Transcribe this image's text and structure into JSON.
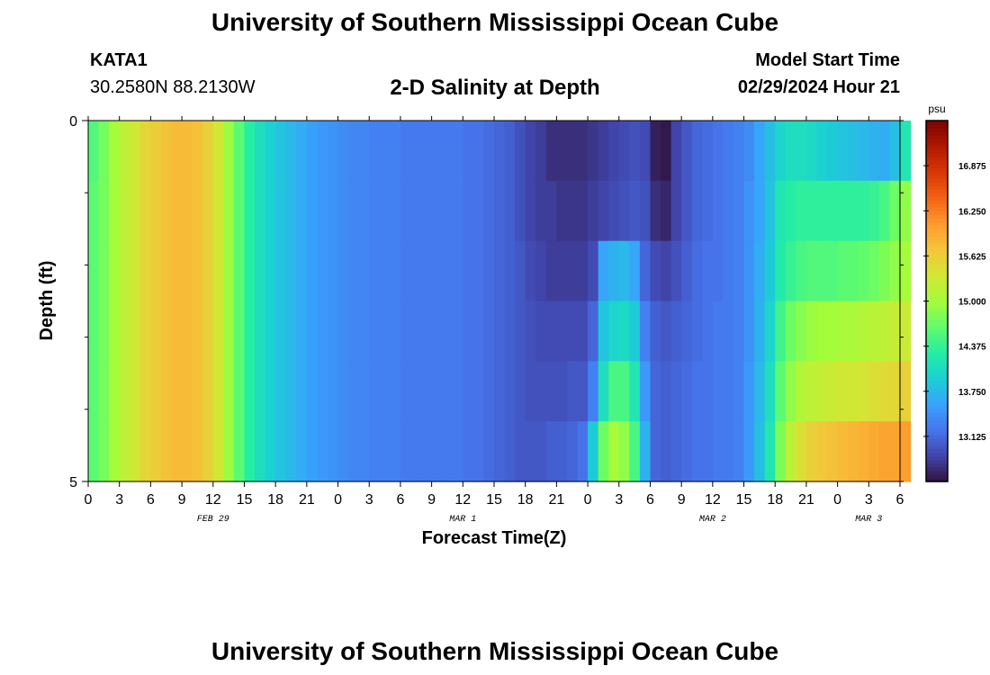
{
  "header": {
    "title": "University of Southern Mississippi Ocean Cube",
    "station": "KATA1",
    "coordinates": "30.2580N  88.2130W",
    "subtitle": "2-D Salinity at Depth",
    "model_start_label": "Model Start Time",
    "model_start_value": "02/29/2024 Hour 21"
  },
  "footer": {
    "title": "University of Southern Mississippi Ocean Cube"
  },
  "chart_data": {
    "type": "heatmap",
    "title": "2-D Salinity at Depth",
    "xlabel": "Forecast Time(Z)",
    "ylabel": "Depth (ft)",
    "units": "psu",
    "x_range_hours": [
      0,
      78
    ],
    "y_range_ft": [
      0,
      5
    ],
    "x_tick_labels": [
      "0",
      "3",
      "6",
      "9",
      "12",
      "15",
      "18",
      "21",
      "0",
      "3",
      "6",
      "9",
      "12",
      "15",
      "18",
      "21",
      "0",
      "3",
      "6",
      "9",
      "12",
      "15",
      "18",
      "21",
      "0",
      "3",
      "6"
    ],
    "day_labels": [
      {
        "label": "FEB 29",
        "hour": 12
      },
      {
        "label": "MAR 1",
        "hour": 36
      },
      {
        "label": "MAR 2",
        "hour": 60
      },
      {
        "label": "MAR 3",
        "hour": 75
      }
    ],
    "y_tick_labels": [
      "0",
      "5"
    ],
    "colorbar": {
      "min": 12.5,
      "max": 17.5,
      "tick_values": [
        13.125,
        13.75,
        14.375,
        15.0,
        15.625,
        16.25,
        16.875
      ],
      "tick_labels": [
        "13.125",
        "13.750",
        "14.375",
        "15.000",
        "15.625",
        "16.250",
        "16.875"
      ],
      "colors": [
        "#30123b",
        "#4145ab",
        "#4675ed",
        "#39a2fc",
        "#1bcfd4",
        "#24eca6",
        "#61fc6c",
        "#a4fc3b",
        "#d1e834",
        "#f3c63a",
        "#fe9b2d",
        "#f36315",
        "#d93806",
        "#b11901",
        "#7a0402"
      ]
    },
    "depth_levels_ft": [
      0,
      1,
      2,
      3,
      4,
      5
    ],
    "salinity_psu_by_hour": [
      [
        14.55,
        14.6,
        14.6,
        14.6,
        14.6,
        14.6
      ],
      [
        14.75,
        14.75,
        14.75,
        14.75,
        14.75,
        14.75
      ],
      [
        15.0,
        15.0,
        15.0,
        15.0,
        15.0,
        15.0
      ],
      [
        15.2,
        15.2,
        15.2,
        15.2,
        15.2,
        15.2
      ],
      [
        15.35,
        15.35,
        15.35,
        15.35,
        15.35,
        15.35
      ],
      [
        15.55,
        15.55,
        15.55,
        15.55,
        15.55,
        15.55
      ],
      [
        15.65,
        15.65,
        15.65,
        15.65,
        15.65,
        15.65
      ],
      [
        15.75,
        15.75,
        15.75,
        15.75,
        15.75,
        15.75
      ],
      [
        15.8,
        15.8,
        15.8,
        15.8,
        15.8,
        15.8
      ],
      [
        15.8,
        15.8,
        15.8,
        15.8,
        15.8,
        15.8
      ],
      [
        15.75,
        15.75,
        15.75,
        15.75,
        15.75,
        15.75
      ],
      [
        15.6,
        15.6,
        15.6,
        15.6,
        15.6,
        15.6
      ],
      [
        15.35,
        15.35,
        15.35,
        15.35,
        15.35,
        15.35
      ],
      [
        14.95,
        14.95,
        14.95,
        14.95,
        14.95,
        14.95
      ],
      [
        14.6,
        14.6,
        14.6,
        14.6,
        14.6,
        14.6
      ],
      [
        14.3,
        14.3,
        14.3,
        14.3,
        14.3,
        14.3
      ],
      [
        14.1,
        14.1,
        14.1,
        14.1,
        14.1,
        14.1
      ],
      [
        13.95,
        13.95,
        13.95,
        13.95,
        13.95,
        13.95
      ],
      [
        13.85,
        13.85,
        13.85,
        13.85,
        13.85,
        13.85
      ],
      [
        13.75,
        13.75,
        13.75,
        13.75,
        13.75,
        13.75
      ],
      [
        13.65,
        13.65,
        13.65,
        13.65,
        13.65,
        13.65
      ],
      [
        13.55,
        13.55,
        13.55,
        13.55,
        13.55,
        13.55
      ],
      [
        13.5,
        13.5,
        13.5,
        13.5,
        13.5,
        13.5
      ],
      [
        13.45,
        13.45,
        13.45,
        13.45,
        13.45,
        13.45
      ],
      [
        13.4,
        13.4,
        13.4,
        13.4,
        13.4,
        13.4
      ],
      [
        13.35,
        13.35,
        13.35,
        13.35,
        13.35,
        13.35
      ],
      [
        13.35,
        13.35,
        13.35,
        13.35,
        13.35,
        13.35
      ],
      [
        13.3,
        13.3,
        13.3,
        13.3,
        13.3,
        13.3
      ],
      [
        13.3,
        13.3,
        13.3,
        13.3,
        13.3,
        13.3
      ],
      [
        13.3,
        13.3,
        13.3,
        13.3,
        13.3,
        13.3
      ],
      [
        13.25,
        13.25,
        13.25,
        13.25,
        13.25,
        13.25
      ],
      [
        13.25,
        13.25,
        13.25,
        13.25,
        13.25,
        13.25
      ],
      [
        13.25,
        13.25,
        13.25,
        13.25,
        13.25,
        13.25
      ],
      [
        13.25,
        13.25,
        13.25,
        13.25,
        13.25,
        13.25
      ],
      [
        13.25,
        13.25,
        13.25,
        13.25,
        13.25,
        13.25
      ],
      [
        13.25,
        13.25,
        13.25,
        13.25,
        13.25,
        13.25
      ],
      [
        13.2,
        13.2,
        13.2,
        13.2,
        13.2,
        13.2
      ],
      [
        13.2,
        13.2,
        13.2,
        13.2,
        13.2,
        13.2
      ],
      [
        13.15,
        13.15,
        13.15,
        13.15,
        13.15,
        13.15
      ],
      [
        13.1,
        13.1,
        13.1,
        13.1,
        13.1,
        13.1
      ],
      [
        13.05,
        13.05,
        13.05,
        13.05,
        13.05,
        13.05
      ],
      [
        12.95,
        12.95,
        13.0,
        13.0,
        13.0,
        13.0
      ],
      [
        12.85,
        12.85,
        12.9,
        12.95,
        12.95,
        13.0
      ],
      [
        12.8,
        12.8,
        12.85,
        12.9,
        12.95,
        13.0
      ],
      [
        12.7,
        12.8,
        12.8,
        12.9,
        12.95,
        13.05
      ],
      [
        12.7,
        12.75,
        12.8,
        12.9,
        12.95,
        13.05
      ],
      [
        12.7,
        12.75,
        12.8,
        12.9,
        13.0,
        13.1
      ],
      [
        12.7,
        12.75,
        12.8,
        12.9,
        13.0,
        13.2
      ],
      [
        12.75,
        12.8,
        12.9,
        13.1,
        13.3,
        13.9
      ],
      [
        12.8,
        12.85,
        13.6,
        13.85,
        14.1,
        14.7
      ],
      [
        12.85,
        12.9,
        13.7,
        14.0,
        14.5,
        15.0
      ],
      [
        12.9,
        12.95,
        13.75,
        14.05,
        14.5,
        14.9
      ],
      [
        12.95,
        13.0,
        13.6,
        13.9,
        14.2,
        14.5
      ],
      [
        12.9,
        12.95,
        13.1,
        13.3,
        13.5,
        13.7
      ],
      [
        12.6,
        12.7,
        12.9,
        13.05,
        13.1,
        13.1
      ],
      [
        12.55,
        12.65,
        12.85,
        13.0,
        13.05,
        13.05
      ],
      [
        12.85,
        12.85,
        12.95,
        13.05,
        13.1,
        13.1
      ],
      [
        13.0,
        13.0,
        13.05,
        13.1,
        13.15,
        13.15
      ],
      [
        13.1,
        13.1,
        13.15,
        13.15,
        13.2,
        13.2
      ],
      [
        13.15,
        13.15,
        13.2,
        13.2,
        13.2,
        13.2
      ],
      [
        13.2,
        13.2,
        13.2,
        13.25,
        13.25,
        13.25
      ],
      [
        13.25,
        13.25,
        13.25,
        13.25,
        13.25,
        13.25
      ],
      [
        13.3,
        13.3,
        13.3,
        13.3,
        13.3,
        13.3
      ],
      [
        13.4,
        13.45,
        13.45,
        13.45,
        13.5,
        13.5
      ],
      [
        13.6,
        13.6,
        13.65,
        13.7,
        13.75,
        13.8
      ],
      [
        13.8,
        13.85,
        13.9,
        14.0,
        14.1,
        14.2
      ],
      [
        14.0,
        14.2,
        14.25,
        14.45,
        14.6,
        14.8
      ],
      [
        14.1,
        14.3,
        14.4,
        14.7,
        14.9,
        15.2
      ],
      [
        14.1,
        14.35,
        14.5,
        14.85,
        15.1,
        15.45
      ],
      [
        14.05,
        14.35,
        14.55,
        14.95,
        15.2,
        15.6
      ],
      [
        13.95,
        14.35,
        14.55,
        15.0,
        15.25,
        15.7
      ],
      [
        13.9,
        14.35,
        14.55,
        15.0,
        15.3,
        15.75
      ],
      [
        13.85,
        14.35,
        14.6,
        15.05,
        15.35,
        15.8
      ],
      [
        13.8,
        14.35,
        14.6,
        15.05,
        15.35,
        15.85
      ],
      [
        13.75,
        14.35,
        14.65,
        15.1,
        15.4,
        15.9
      ],
      [
        13.7,
        14.4,
        14.7,
        15.15,
        15.45,
        15.95
      ],
      [
        13.65,
        14.5,
        14.8,
        15.2,
        15.5,
        16.0
      ],
      [
        13.8,
        14.7,
        14.9,
        15.25,
        15.55,
        16.0
      ],
      [
        14.2,
        14.9,
        15.0,
        15.3,
        15.6,
        16.05
      ]
    ]
  }
}
